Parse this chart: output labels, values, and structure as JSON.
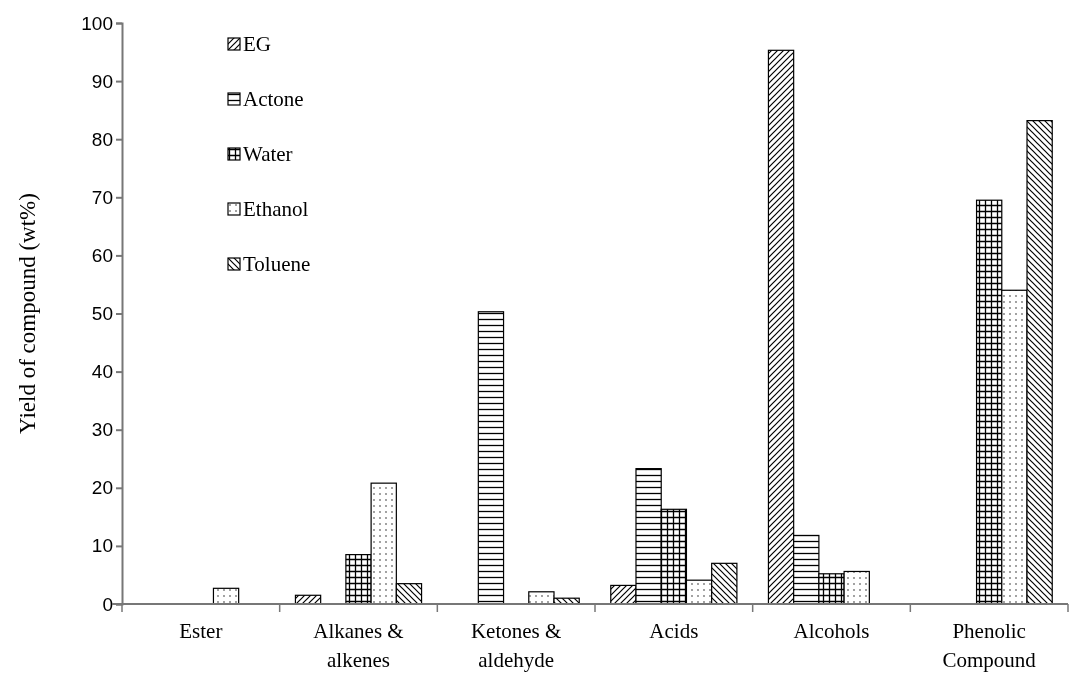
{
  "chart_data": {
    "type": "bar",
    "ylabel": "Yield of compound (wt%)",
    "categories": [
      "Ester",
      "Alkanes & alkenes",
      "Ketones & aldehyde",
      "Acids",
      "Alcohols",
      "Phenolic Compound"
    ],
    "series": [
      {
        "name": "EG",
        "color": "#000000",
        "values": [
          null,
          1.5,
          null,
          3.2,
          95.3,
          null
        ]
      },
      {
        "name": "Actone",
        "color": "#000000",
        "values": [
          null,
          null,
          50.3,
          23.3,
          11.8,
          null
        ]
      },
      {
        "name": "Water",
        "color": "#000000",
        "values": [
          null,
          8.5,
          null,
          16.3,
          5.2,
          69.5
        ]
      },
      {
        "name": "Ethanol",
        "color": "#000000",
        "values": [
          2.7,
          20.8,
          2.1,
          4.1,
          5.6,
          54.0
        ]
      },
      {
        "name": "Toluene",
        "color": "#000000",
        "values": [
          null,
          3.5,
          1.0,
          7.0,
          null,
          83.2
        ]
      }
    ],
    "ylim": [
      0,
      100
    ],
    "yticks": [
      0,
      10,
      20,
      30,
      40,
      50,
      60,
      70,
      80,
      90,
      100
    ],
    "grid": false,
    "legend": "top left"
  }
}
